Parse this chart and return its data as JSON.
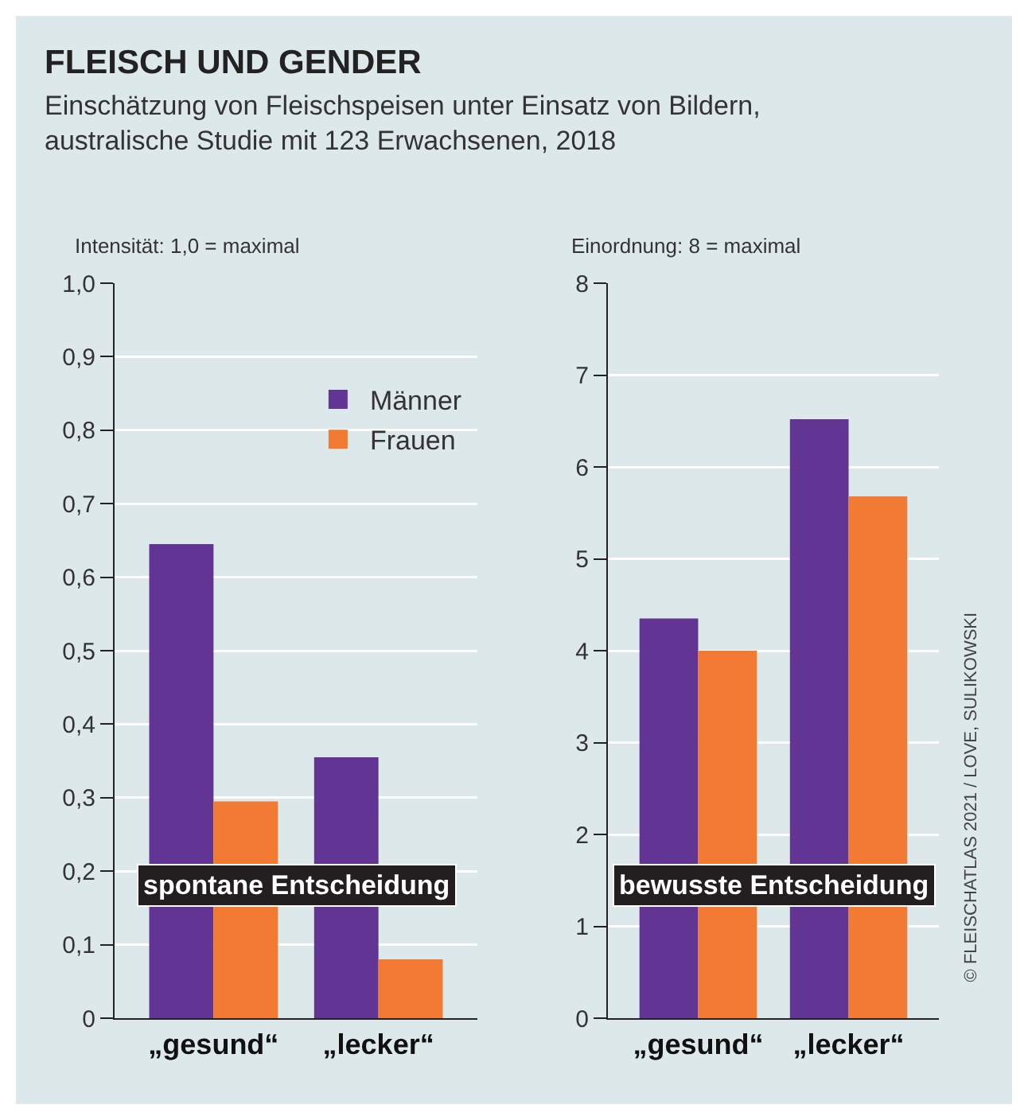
{
  "chart_data": [
    {
      "type": "bar",
      "title": "FLEISCH UND GENDER",
      "subtitle": "Einschätzung von Fleischspeisen unter Einsatz von Bildern,\naustralische Studie mit 123 Erwachsenen, 2018",
      "ylabel": "Intensität: 1,0 = maximal",
      "categories": [
        "„gesund“",
        "„lecker“"
      ],
      "series": [
        {
          "name": "Männer",
          "color": "#623594",
          "values": [
            0.645,
            0.355
          ]
        },
        {
          "name": "Frauen",
          "color": "#f27a33",
          "values": [
            0.295,
            0.08
          ]
        }
      ],
      "ylim": [
        0,
        1
      ],
      "yticks": [
        0,
        {
          "value": 0.1,
          "label": "0,1"
        },
        {
          "value": 0.2,
          "label": "0,2"
        },
        {
          "value": 0.3,
          "label": "0,3"
        },
        {
          "value": 0.4,
          "label": "0,4"
        },
        {
          "value": 0.5,
          "label": "0,5"
        },
        {
          "value": 0.6,
          "label": "0,6"
        },
        {
          "value": 0.7,
          "label": "0,7"
        },
        {
          "value": 0.8,
          "label": "0,8"
        },
        {
          "value": 0.9,
          "label": "0,9"
        },
        {
          "value": 1,
          "label": "1,0"
        }
      ],
      "grid": "y",
      "legend": "top right",
      "annotations": [
        "spontane Entscheidung"
      ]
    },
    {
      "type": "bar",
      "ylabel": "Einordnung: 8 = maximal",
      "categories": [
        "„gesund“",
        "„lecker“"
      ],
      "series": [
        {
          "color": "#623594",
          "values": [
            4.35,
            6.52
          ]
        },
        {
          "color": "#f27a33",
          "values": [
            4.0,
            5.68
          ]
        }
      ],
      "ylim": [
        0,
        8
      ],
      "yticks": [
        0,
        1,
        2,
        3,
        4,
        5,
        6,
        7,
        8
      ],
      "grid": "y",
      "annotations": [
        "bewusste Entscheidung",
        "© FLEISCHATLAS 2021 / LOVE, SULIKOWSKI"
      ]
    }
  ]
}
